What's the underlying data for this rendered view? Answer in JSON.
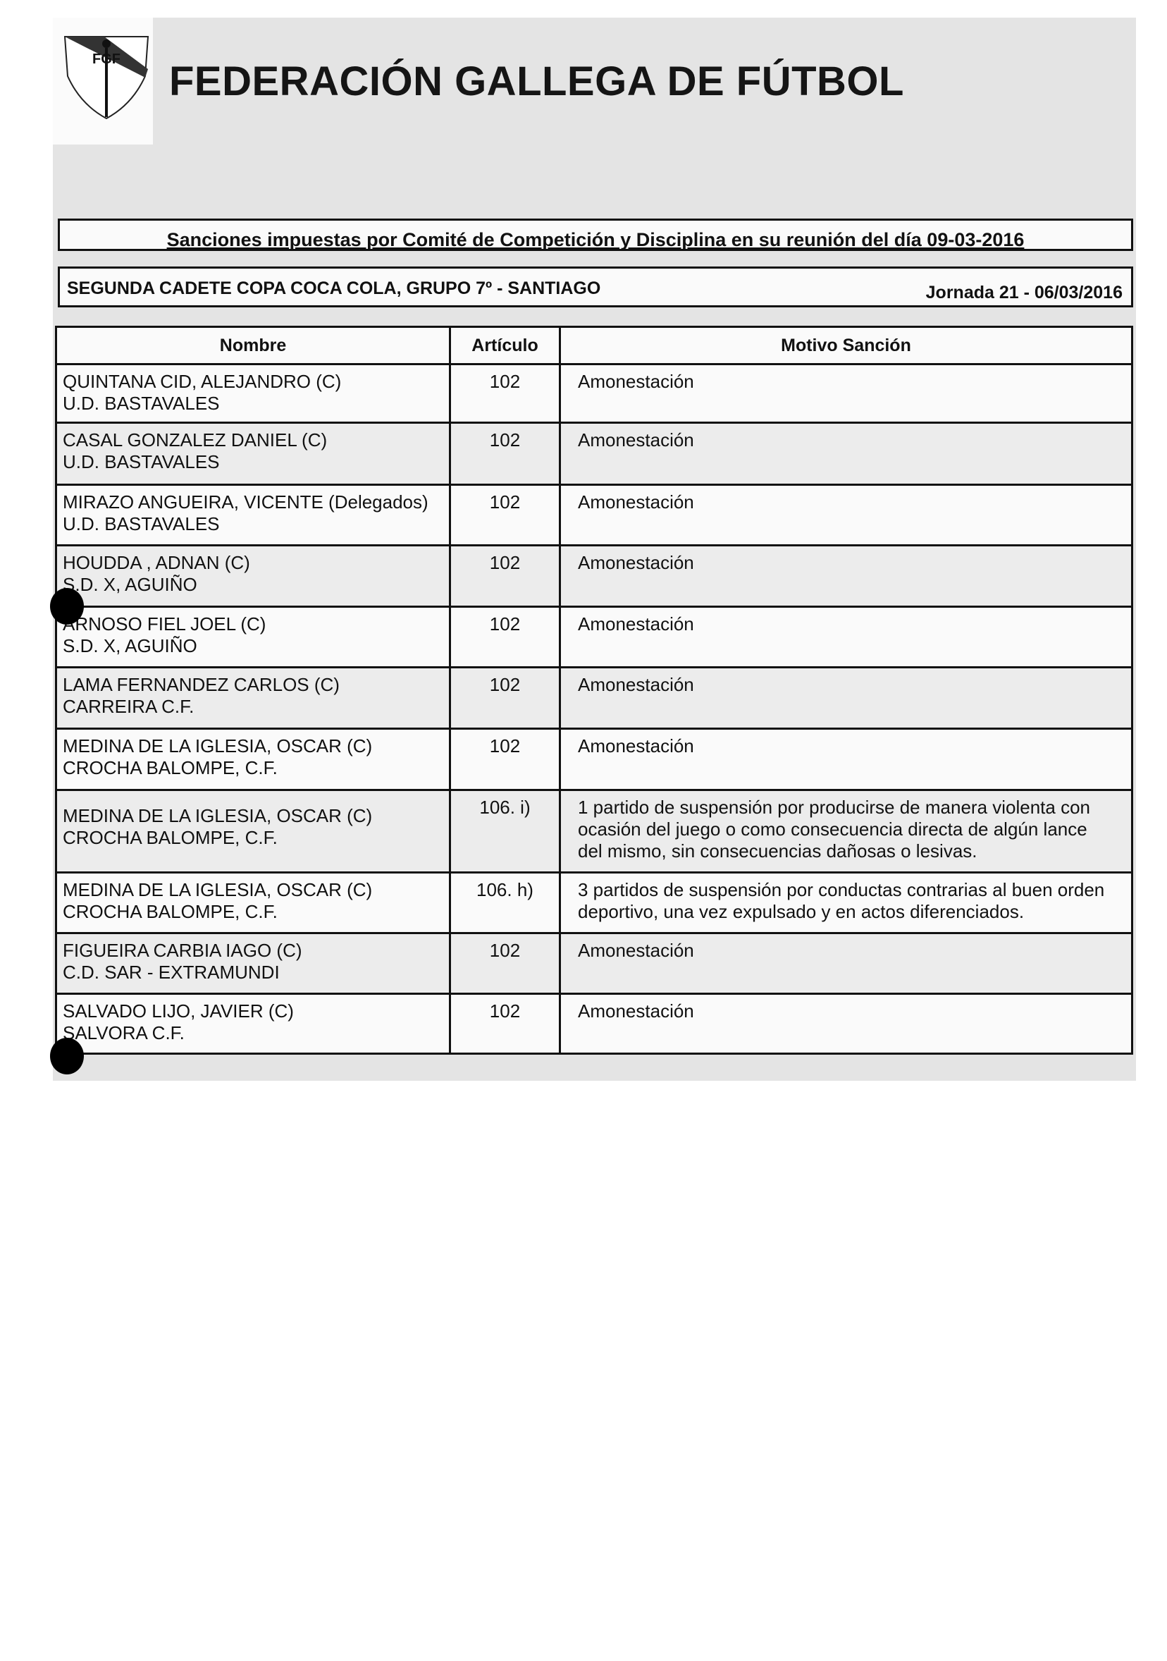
{
  "header": {
    "title": "FEDERACIÓN GALLEGA DE FÚTBOL",
    "logo_text": "FGF"
  },
  "session_title": "Sanciones impuestas por Comité de Competición y Disciplina en su reunión del día 09-03-2016",
  "competition": {
    "name": "SEGUNDA CADETE COPA COCA COLA,  GRUPO 7º - SANTIAGO",
    "jornada": "Jornada 21 - 06/03/2016"
  },
  "table": {
    "headers": [
      "Nombre",
      "Artículo",
      "Motivo Sanción"
    ],
    "rows": [
      {
        "name": "QUINTANA CID, ALEJANDRO (C)",
        "club": "U.D. BASTAVALES",
        "article": "102",
        "reason": "Amonestación"
      },
      {
        "name": "CASAL GONZALEZ DANIEL (C)",
        "club": "U.D. BASTAVALES",
        "article": "102",
        "reason": "Amonestación"
      },
      {
        "name": "MIRAZO ANGUEIRA, VICENTE (Delegados)",
        "club": "U.D. BASTAVALES",
        "article": "102",
        "reason": "Amonestación"
      },
      {
        "name": "HOUDDA , ADNAN (C)",
        "club": "S.D. X, AGUIÑO",
        "article": "102",
        "reason": "Amonestación"
      },
      {
        "name": "ARNOSO FIEL JOEL (C)",
        "club": "S.D. X, AGUIÑO",
        "article": "102",
        "reason": "Amonestación"
      },
      {
        "name": "LAMA FERNANDEZ CARLOS (C)",
        "club": "CARREIRA C.F.",
        "article": "102",
        "reason": "Amonestación"
      },
      {
        "name": "MEDINA DE LA IGLESIA, OSCAR (C)",
        "club": "CROCHA BALOMPE, C.F.",
        "article": "102",
        "reason": "Amonestación"
      },
      {
        "name": "MEDINA DE LA IGLESIA, OSCAR (C)",
        "club": "CROCHA BALOMPE, C.F.",
        "article": "106. i)",
        "reason": "1 partido de suspensión por producirse de manera violenta con ocasión del juego o como consecuencia directa de algún lance del mismo, sin consecuencias dañosas o lesivas."
      },
      {
        "name": "MEDINA DE LA IGLESIA, OSCAR (C)",
        "club": "CROCHA BALOMPE, C.F.",
        "article": "106. h)",
        "reason": "3 partidos de suspensión por conductas contrarias al buen orden deportivo, una vez expulsado y en actos diferenciados."
      },
      {
        "name": "FIGUEIRA CARBIA IAGO (C)",
        "club": "C.D. SAR - EXTRAMUNDI",
        "article": "102",
        "reason": "Amonestación"
      },
      {
        "name": "SALVADO LIJO, JAVIER (C)",
        "club": "SALVORA C.F.",
        "article": "102",
        "reason": "Amonestación"
      }
    ]
  }
}
